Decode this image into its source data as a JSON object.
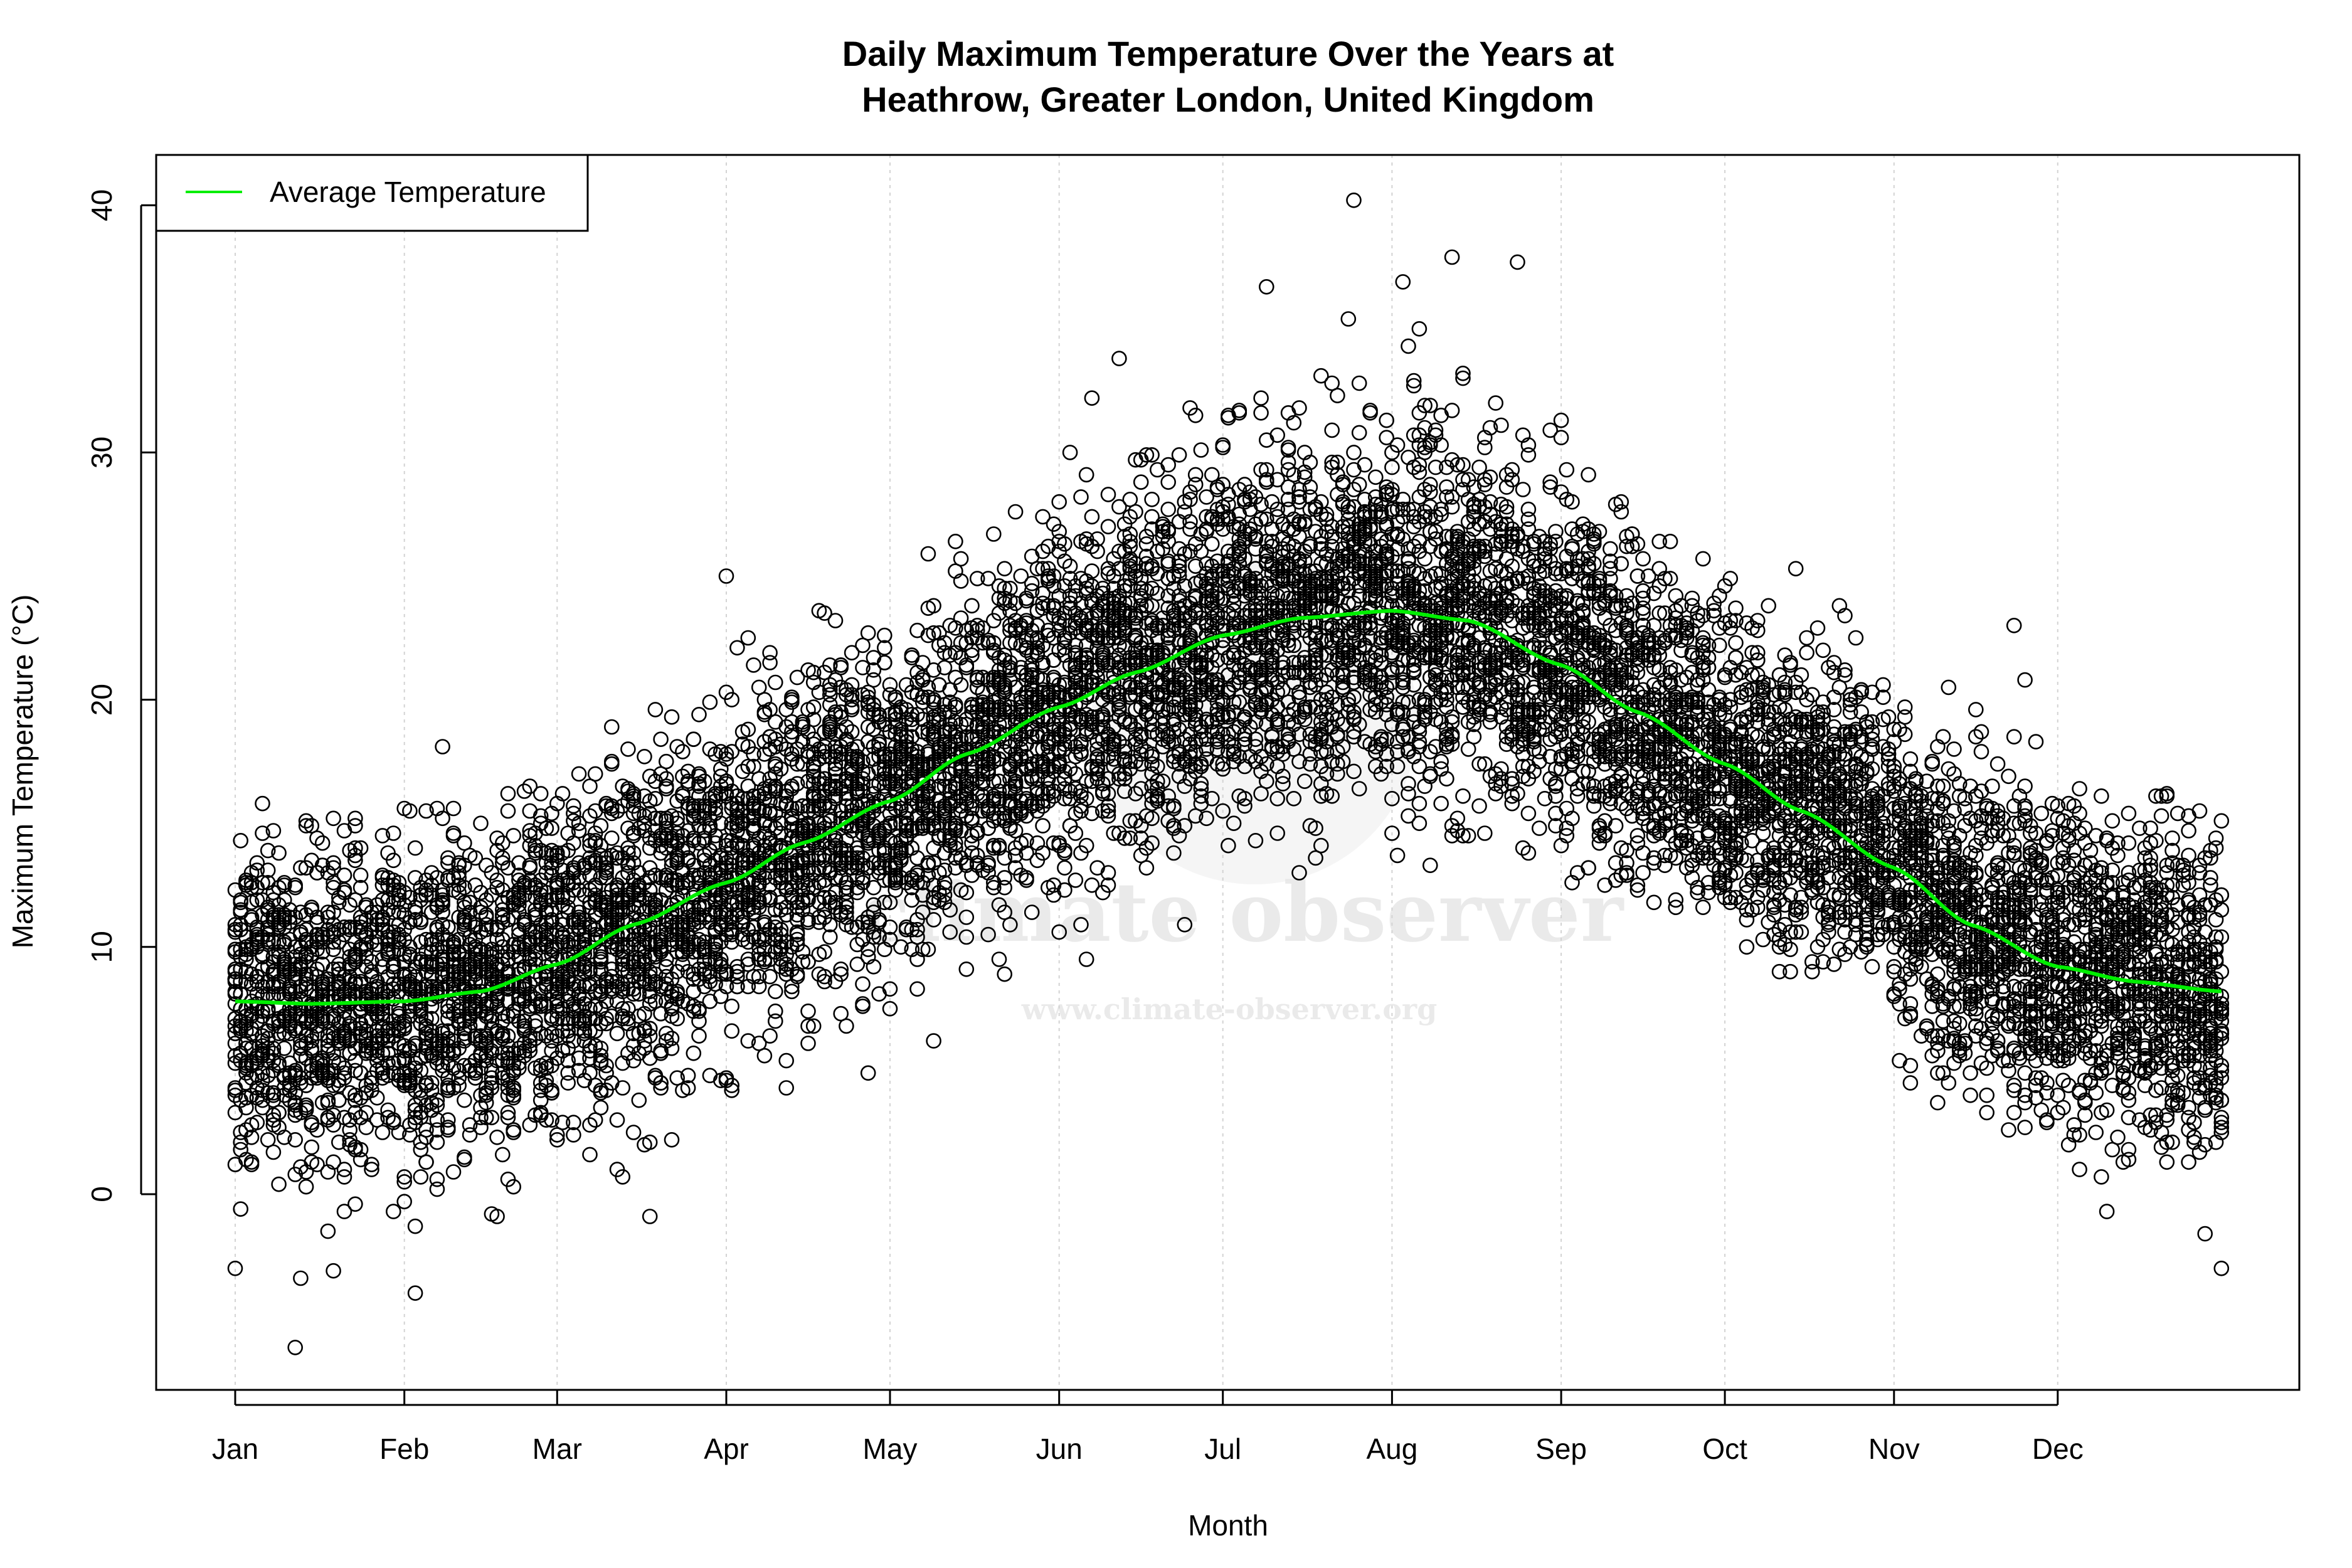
{
  "chart_data": {
    "type": "scatter",
    "title_lines": [
      "Daily Maximum Temperature Over the Years at",
      "Heathrow, Greater London, United Kingdom"
    ],
    "xlabel": "Month",
    "ylabel": "Maximum Temperature (°C)",
    "x_tick_labels": [
      "Jan",
      "Feb",
      "Mar",
      "Apr",
      "May",
      "Jun",
      "Jul",
      "Aug",
      "Sep",
      "Oct",
      "Nov",
      "Dec"
    ],
    "x_tick_days": [
      1,
      32,
      60,
      91,
      121,
      152,
      182,
      213,
      244,
      274,
      305,
      335
    ],
    "x_range_days": [
      1,
      365
    ],
    "y_ticks": [
      0,
      10,
      20,
      30,
      40
    ],
    "ylim": [
      -7.5,
      42
    ],
    "grid": "vertical dotted lines at month ticks",
    "legend": {
      "position": "top-left",
      "entries": [
        {
          "label": "Average Temperature",
          "color": "#00ee00"
        }
      ]
    },
    "average_series": {
      "name": "Average Temperature",
      "color": "#00ee00",
      "points": [
        [
          1,
          7.8
        ],
        [
          15,
          7.7
        ],
        [
          32,
          7.8
        ],
        [
          46,
          8.2
        ],
        [
          60,
          9.3
        ],
        [
          74,
          10.9
        ],
        [
          91,
          12.6
        ],
        [
          105,
          14.2
        ],
        [
          121,
          15.9
        ],
        [
          135,
          17.8
        ],
        [
          152,
          19.7
        ],
        [
          166,
          21.1
        ],
        [
          182,
          22.6
        ],
        [
          196,
          23.3
        ],
        [
          213,
          23.6
        ],
        [
          227,
          23.2
        ],
        [
          244,
          21.4
        ],
        [
          258,
          19.5
        ],
        [
          274,
          17.4
        ],
        [
          288,
          15.5
        ],
        [
          305,
          13.2
        ],
        [
          319,
          10.9
        ],
        [
          335,
          9.2
        ],
        [
          349,
          8.6
        ],
        [
          365,
          8.2
        ]
      ]
    },
    "observed_monthly_range": [
      {
        "month": "Jan",
        "min": -6.2,
        "max": 16.0
      },
      {
        "month": "Feb",
        "min": -4.0,
        "max": 18.6
      },
      {
        "month": "Mar",
        "min": -1.2,
        "max": 20.0
      },
      {
        "month": "Apr",
        "min": 0.5,
        "max": 25.0
      },
      {
        "month": "May",
        "min": 5.5,
        "max": 29.0
      },
      {
        "month": "Jun",
        "min": 8.0,
        "max": 33.9
      },
      {
        "month": "Jul",
        "min": 12.7,
        "max": 40.2
      },
      {
        "month": "Aug",
        "min": 13.3,
        "max": 37.9
      },
      {
        "month": "Sep",
        "min": 11.0,
        "max": 33.0
      },
      {
        "month": "Oct",
        "min": 9.0,
        "max": 28.6
      },
      {
        "month": "Nov",
        "min": 2.2,
        "max": 23.0
      },
      {
        "month": "Dec",
        "min": -1.6,
        "max": 16.4
      }
    ],
    "notable_points": [
      [
        12,
        -6.2
      ],
      [
        1,
        -3.0
      ],
      [
        34,
        -4.0
      ],
      [
        365,
        -3.0
      ],
      [
        206,
        40.2
      ],
      [
        190,
        36.7
      ],
      [
        224,
        37.9
      ],
      [
        215,
        36.9
      ],
      [
        176,
        31.8
      ],
      [
        327,
        23.0
      ],
      [
        329,
        20.8
      ],
      [
        91,
        25.0
      ]
    ],
    "point_style": "open black circles"
  },
  "watermark": {
    "brand": "climate observer",
    "url": "www.climate-observer.org"
  }
}
